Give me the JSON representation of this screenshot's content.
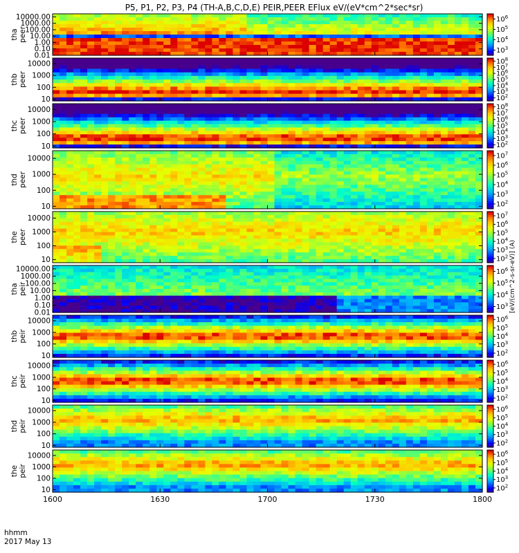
{
  "title": "P5, P1, P2, P3, P4 (TH-A,B,C,D,E) PEIR,PEER EFlux eV/(eV*cm^2*sec*sr)",
  "x_axis": {
    "label_line1": "hhmm",
    "label_line2": "2017 May 13",
    "ticks": [
      "1600",
      "1630",
      "1700",
      "1730",
      "1800"
    ]
  },
  "colors": {
    "background": "#ffffff",
    "axis": "#000000"
  },
  "chart_data": {
    "type": "heatmap",
    "x_range": [
      "16:00",
      "18:00"
    ],
    "x_ticks": [
      "1600",
      "1630",
      "1700",
      "1730",
      "1800"
    ],
    "colorbar_label": "[eV/(cm^2-s-sr-eV)] (A)",
    "panels": [
      {
        "ylabel": "tha peer",
        "yscale": "log",
        "ylim": [
          0.01,
          30000
        ],
        "yticks": [
          "10000.00",
          "1000.00",
          "100.00",
          "10.00",
          "1.00",
          "0.10",
          "0.01"
        ],
        "yvals": [
          10000,
          1000,
          100,
          10,
          1,
          0.1,
          0.01
        ],
        "cbar_ticks": [
          "10^6",
          "10^5",
          "10^4",
          "10^3"
        ],
        "cbar_vals": [
          6,
          5,
          4,
          3
        ],
        "cbar_range": [
          2.5,
          6.5
        ]
      },
      {
        "ylabel": "thb peer",
        "yscale": "log",
        "ylim": [
          7,
          30000
        ],
        "yticks": [
          "10000",
          "1000",
          "100",
          "10"
        ],
        "yvals": [
          10000,
          1000,
          100,
          10
        ],
        "cbar_ticks": [
          "10^8",
          "10^7",
          "10^6",
          "10^5",
          "10^4",
          "10^3",
          "10^2"
        ],
        "cbar_vals": [
          8,
          7,
          6,
          5,
          4,
          3,
          2
        ],
        "cbar_range": [
          1.5,
          8.5
        ]
      },
      {
        "ylabel": "thc peer",
        "yscale": "log",
        "ylim": [
          7,
          30000
        ],
        "yticks": [
          "10000",
          "1000",
          "100",
          "10"
        ],
        "yvals": [
          10000,
          1000,
          100,
          10
        ],
        "cbar_ticks": [
          "10^8",
          "10^7",
          "10^6",
          "10^5",
          "10^4",
          "10^3",
          "10^2"
        ],
        "cbar_vals": [
          8,
          7,
          6,
          5,
          4,
          3,
          2
        ],
        "cbar_range": [
          1.5,
          8.5
        ]
      },
      {
        "ylabel": "thd peer",
        "yscale": "log",
        "ylim": [
          7,
          30000
        ],
        "yticks": [
          "10000",
          "1000",
          "100",
          "10"
        ],
        "yvals": [
          10000,
          1000,
          100,
          10
        ],
        "cbar_ticks": [
          "10^7",
          "10^6",
          "10^5",
          "10^4",
          "10^3",
          "10^2"
        ],
        "cbar_vals": [
          7,
          6,
          5,
          4,
          3,
          2
        ],
        "cbar_range": [
          1.5,
          7.5
        ]
      },
      {
        "ylabel": "the peer",
        "yscale": "log",
        "ylim": [
          6,
          30000
        ],
        "yticks": [
          "10000",
          "1000",
          "100",
          "10"
        ],
        "yvals": [
          10000,
          1000,
          100,
          10
        ],
        "cbar_ticks": [
          "10^7",
          "10^6",
          "10^5",
          "10^4",
          "10^3",
          "10^2"
        ],
        "cbar_vals": [
          7,
          6,
          5,
          4,
          3,
          2
        ],
        "cbar_range": [
          1.5,
          7.5
        ]
      },
      {
        "ylabel": "tha peir",
        "yscale": "log",
        "ylim": [
          0.01,
          30000
        ],
        "yticks": [
          "10000.00",
          "1000.00",
          "100.00",
          "10.00",
          "1.00",
          "0.10",
          "0.01"
        ],
        "yvals": [
          10000,
          1000,
          100,
          10,
          1,
          0.1,
          0.01
        ],
        "cbar_ticks": [
          "10^6",
          "10^5",
          "10^4",
          "10^3"
        ],
        "cbar_vals": [
          6,
          5,
          4,
          3
        ],
        "cbar_range": [
          2.5,
          6.5
        ]
      },
      {
        "ylabel": "thb peir",
        "yscale": "log",
        "ylim": [
          7,
          30000
        ],
        "yticks": [
          "10000",
          "1000",
          "100",
          "10"
        ],
        "yvals": [
          10000,
          1000,
          100,
          10
        ],
        "cbar_ticks": [
          "10^6",
          "10^5",
          "10^4",
          "10^3",
          "10^2"
        ],
        "cbar_vals": [
          6,
          5,
          4,
          3,
          2
        ],
        "cbar_range": [
          1.5,
          6.5
        ]
      },
      {
        "ylabel": "thc peir",
        "yscale": "log",
        "ylim": [
          7,
          30000
        ],
        "yticks": [
          "10000",
          "1000",
          "100",
          "10"
        ],
        "yvals": [
          10000,
          1000,
          100,
          10
        ],
        "cbar_ticks": [
          "10^6",
          "10^5",
          "10^4",
          "10^3",
          "10^2"
        ],
        "cbar_vals": [
          6,
          5,
          4,
          3,
          2
        ],
        "cbar_range": [
          1.5,
          6.5
        ]
      },
      {
        "ylabel": "thd peir",
        "yscale": "log",
        "ylim": [
          7,
          30000
        ],
        "yticks": [
          "10000",
          "1000",
          "100",
          "10"
        ],
        "yvals": [
          10000,
          1000,
          100,
          10
        ],
        "cbar_ticks": [
          "10^6",
          "10^5",
          "10^4",
          "10^3",
          "10^2"
        ],
        "cbar_vals": [
          6,
          5,
          4,
          3,
          2
        ],
        "cbar_range": [
          1.5,
          6.5
        ]
      },
      {
        "ylabel": "the peir",
        "yscale": "log",
        "ylim": [
          6,
          30000
        ],
        "yticks": [
          "10000",
          "1000",
          "100",
          "10"
        ],
        "yvals": [
          10000,
          1000,
          100,
          10
        ],
        "cbar_ticks": [
          "10^6",
          "10^5",
          "10^4",
          "10^3",
          "10^2"
        ],
        "cbar_vals": [
          6,
          5,
          4,
          3,
          2
        ],
        "cbar_range": [
          1.5,
          6.5
        ]
      }
    ]
  }
}
